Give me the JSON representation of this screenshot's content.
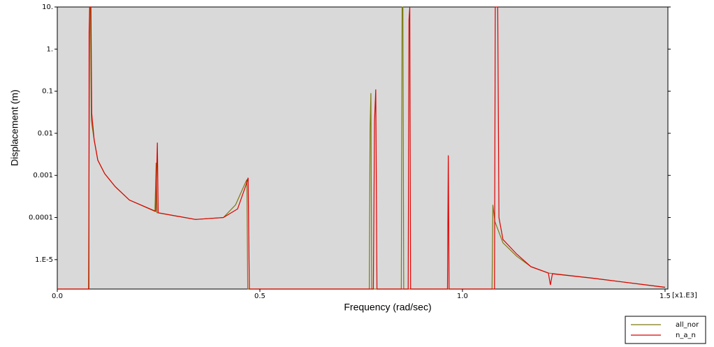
{
  "chart_data": {
    "type": "line",
    "xlabel": "Frequency (rad/sec)",
    "ylabel": "Displacement (m)",
    "x_unit_note": "[x1.E3]",
    "log_y": true,
    "xlim": [
      0,
      1.507
    ],
    "ylim": [
      2e-06,
      10
    ],
    "xticks": [
      {
        "value": 0,
        "label": "0.0"
      },
      0.5,
      {
        "value": 1,
        "label": "1.0"
      },
      1.5
    ],
    "yticks": [
      {
        "value": 10,
        "label": "10."
      },
      {
        "value": 1,
        "label": "1."
      },
      0.1,
      0.01,
      0.001,
      0.0001,
      {
        "value": 1e-05,
        "label": "1.E-5"
      }
    ],
    "legend": "bottom-right",
    "background": "#d9d9d9",
    "series": [
      {
        "name": "all_nor",
        "color": "#7a7a10",
        "x": [
          0,
          0.077,
          0.078,
          0.08,
          0.082,
          0.084,
          0.091,
          0.1,
          0.117,
          0.143,
          0.178,
          0.241,
          0.244,
          0.246,
          0.341,
          0.41,
          0.44,
          0.462,
          0.468,
          0.47,
          0.77,
          0.772,
          0.774,
          0.776,
          0.849,
          0.851,
          0.853,
          0.855,
          1.073,
          1.075,
          1.08,
          1.1,
          1.134,
          1.169,
          1.212,
          1.324,
          1.5
        ],
        "values": [
          2e-06,
          2e-06,
          0.0002,
          10,
          10,
          0.02,
          0.007,
          0.0023,
          0.0011,
          0.00054,
          0.00026,
          0.00014,
          0.002,
          0.00013,
          9e-05,
          0.0001,
          0.0002,
          0.0006,
          0.0008,
          2e-06,
          2e-06,
          0.013,
          0.09,
          2e-06,
          2e-06,
          10,
          10,
          2e-06,
          2e-06,
          0.0002,
          8e-05,
          2.5e-05,
          1.2e-05,
          6.8e-06,
          4.8e-06,
          3.6e-06,
          2.2e-06
        ]
      },
      {
        "name": "n_a_n",
        "color": "#e00000",
        "x": [
          0,
          0.078,
          0.0785,
          0.08,
          0.083,
          0.085,
          0.091,
          0.1,
          0.117,
          0.143,
          0.178,
          0.243,
          0.247,
          0.249,
          0.341,
          0.41,
          0.445,
          0.466,
          0.471,
          0.474,
          0.78,
          0.783,
          0.786,
          0.789,
          0.866,
          0.868,
          0.87,
          0.872,
          0.963,
          0.965,
          0.967,
          1.079,
          1.081,
          1.087,
          1.09,
          1.1,
          1.134,
          1.169,
          1.212,
          1.217,
          1.222,
          1.324,
          1.5
        ],
        "values": [
          2e-06,
          2e-06,
          2.5,
          10,
          10,
          0.03,
          0.007,
          0.0023,
          0.0011,
          0.00054,
          0.00026,
          0.00014,
          0.006,
          0.00013,
          9e-05,
          0.0001,
          0.00016,
          0.0006,
          0.00088,
          2e-06,
          2e-06,
          0.02,
          0.11,
          2e-06,
          2e-06,
          5,
          10,
          2e-06,
          2e-06,
          0.003,
          2e-06,
          2e-06,
          10,
          10,
          0.0001,
          3e-05,
          1.35e-05,
          6.8e-06,
          4.8e-06,
          2.5e-06,
          4.6e-06,
          3.6e-06,
          2.2e-06
        ]
      }
    ]
  }
}
